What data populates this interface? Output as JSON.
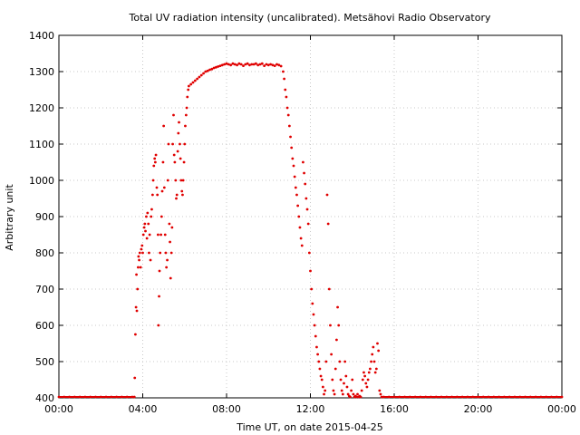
{
  "chart_data": {
    "type": "scatter",
    "title": "Total UV radiation intensity (uncalibrated). Metsähovi Radio Observatory",
    "xlabel": "Time UT, on date 2015-04-25",
    "ylabel": "Arbitrary unit",
    "xlim": [
      0,
      24
    ],
    "ylim": [
      400,
      1400
    ],
    "x_ticks": [
      {
        "value": 0,
        "label": "00:00"
      },
      {
        "value": 4,
        "label": "04:00"
      },
      {
        "value": 8,
        "label": "08:00"
      },
      {
        "value": 12,
        "label": "12:00"
      },
      {
        "value": 16,
        "label": "16:00"
      },
      {
        "value": 20,
        "label": "20:00"
      },
      {
        "value": 24,
        "label": "00:00"
      }
    ],
    "y_ticks": [
      {
        "value": 400,
        "label": "400"
      },
      {
        "value": 500,
        "label": "500"
      },
      {
        "value": 600,
        "label": "600"
      },
      {
        "value": 700,
        "label": "700"
      },
      {
        "value": 800,
        "label": "800"
      },
      {
        "value": 900,
        "label": "900"
      },
      {
        "value": 1000,
        "label": "1000"
      },
      {
        "value": 1100,
        "label": "1100"
      },
      {
        "value": 1200,
        "label": "1200"
      },
      {
        "value": 1300,
        "label": "1300"
      },
      {
        "value": 1400,
        "label": "1400"
      }
    ],
    "grid": true,
    "series": [
      {
        "color": "#e00000",
        "points": [
          [
            0.0,
            400
          ],
          [
            0.25,
            400
          ],
          [
            0.5,
            400
          ],
          [
            0.75,
            400
          ],
          [
            1.0,
            400
          ],
          [
            1.25,
            400
          ],
          [
            1.5,
            400
          ],
          [
            1.75,
            400
          ],
          [
            2.0,
            400
          ],
          [
            2.25,
            400
          ],
          [
            2.5,
            400
          ],
          [
            2.75,
            400
          ],
          [
            3.0,
            400
          ],
          [
            3.25,
            400
          ],
          [
            3.5,
            400
          ],
          [
            3.6,
            400
          ],
          [
            3.62,
            455
          ],
          [
            3.65,
            575
          ],
          [
            3.68,
            650
          ],
          [
            3.7,
            740
          ],
          [
            3.72,
            640
          ],
          [
            3.75,
            700
          ],
          [
            3.78,
            760
          ],
          [
            3.8,
            790
          ],
          [
            3.83,
            780
          ],
          [
            3.86,
            800
          ],
          [
            3.9,
            760
          ],
          [
            3.93,
            810
          ],
          [
            3.97,
            820
          ],
          [
            4.0,
            800
          ],
          [
            4.03,
            850
          ],
          [
            4.07,
            870
          ],
          [
            4.1,
            880
          ],
          [
            4.13,
            860
          ],
          [
            4.17,
            900
          ],
          [
            4.2,
            840
          ],
          [
            4.23,
            910
          ],
          [
            4.27,
            880
          ],
          [
            4.3,
            800
          ],
          [
            4.33,
            850
          ],
          [
            4.37,
            780
          ],
          [
            4.4,
            900
          ],
          [
            4.43,
            920
          ],
          [
            4.47,
            960
          ],
          [
            4.5,
            1000
          ],
          [
            4.53,
            1040
          ],
          [
            4.57,
            1060
          ],
          [
            4.6,
            1050
          ],
          [
            4.63,
            1070
          ],
          [
            4.67,
            980
          ],
          [
            4.7,
            960
          ],
          [
            4.73,
            850
          ],
          [
            4.75,
            600
          ],
          [
            4.78,
            680
          ],
          [
            4.8,
            750
          ],
          [
            4.83,
            800
          ],
          [
            4.87,
            850
          ],
          [
            4.9,
            900
          ],
          [
            4.93,
            970
          ],
          [
            4.97,
            1050
          ],
          [
            5.0,
            1150
          ],
          [
            5.03,
            980
          ],
          [
            5.07,
            850
          ],
          [
            5.1,
            800
          ],
          [
            5.13,
            760
          ],
          [
            5.17,
            780
          ],
          [
            5.2,
            1000
          ],
          [
            5.23,
            1100
          ],
          [
            5.27,
            880
          ],
          [
            5.3,
            830
          ],
          [
            5.33,
            730
          ],
          [
            5.37,
            800
          ],
          [
            5.4,
            870
          ],
          [
            5.43,
            1100
          ],
          [
            5.47,
            1180
          ],
          [
            5.5,
            1070
          ],
          [
            5.53,
            1050
          ],
          [
            5.57,
            1000
          ],
          [
            5.6,
            950
          ],
          [
            5.63,
            960
          ],
          [
            5.67,
            1080
          ],
          [
            5.7,
            1130
          ],
          [
            5.73,
            1160
          ],
          [
            5.77,
            1100
          ],
          [
            5.8,
            1060
          ],
          [
            5.83,
            1000
          ],
          [
            5.87,
            970
          ],
          [
            5.9,
            960
          ],
          [
            5.93,
            1000
          ],
          [
            5.97,
            1050
          ],
          [
            6.0,
            1100
          ],
          [
            6.03,
            1150
          ],
          [
            6.07,
            1180
          ],
          [
            6.1,
            1200
          ],
          [
            6.13,
            1230
          ],
          [
            6.17,
            1250
          ],
          [
            6.2,
            1260
          ],
          [
            6.3,
            1265
          ],
          [
            6.4,
            1270
          ],
          [
            6.5,
            1275
          ],
          [
            6.6,
            1280
          ],
          [
            6.7,
            1285
          ],
          [
            6.8,
            1290
          ],
          [
            6.9,
            1295
          ],
          [
            7.0,
            1300
          ],
          [
            7.1,
            1302
          ],
          [
            7.2,
            1305
          ],
          [
            7.3,
            1307
          ],
          [
            7.4,
            1310
          ],
          [
            7.5,
            1312
          ],
          [
            7.6,
            1314
          ],
          [
            7.7,
            1316
          ],
          [
            7.8,
            1318
          ],
          [
            7.9,
            1320
          ],
          [
            8.0,
            1322
          ],
          [
            8.1,
            1320
          ],
          [
            8.2,
            1318
          ],
          [
            8.3,
            1322
          ],
          [
            8.4,
            1320
          ],
          [
            8.5,
            1318
          ],
          [
            8.6,
            1322
          ],
          [
            8.7,
            1320
          ],
          [
            8.8,
            1316
          ],
          [
            8.9,
            1320
          ],
          [
            9.0,
            1322
          ],
          [
            9.1,
            1318
          ],
          [
            9.2,
            1320
          ],
          [
            9.3,
            1320
          ],
          [
            9.4,
            1322
          ],
          [
            9.5,
            1318
          ],
          [
            9.6,
            1320
          ],
          [
            9.7,
            1322
          ],
          [
            9.8,
            1316
          ],
          [
            9.9,
            1320
          ],
          [
            10.0,
            1318
          ],
          [
            10.1,
            1320
          ],
          [
            10.2,
            1318
          ],
          [
            10.3,
            1316
          ],
          [
            10.4,
            1320
          ],
          [
            10.5,
            1318
          ],
          [
            10.6,
            1315
          ],
          [
            10.7,
            1300
          ],
          [
            10.75,
            1280
          ],
          [
            10.8,
            1250
          ],
          [
            10.85,
            1230
          ],
          [
            10.9,
            1200
          ],
          [
            10.95,
            1180
          ],
          [
            11.0,
            1150
          ],
          [
            11.05,
            1120
          ],
          [
            11.1,
            1090
          ],
          [
            11.15,
            1060
          ],
          [
            11.2,
            1040
          ],
          [
            11.25,
            1010
          ],
          [
            11.3,
            980
          ],
          [
            11.35,
            960
          ],
          [
            11.4,
            930
          ],
          [
            11.45,
            900
          ],
          [
            11.5,
            870
          ],
          [
            11.55,
            840
          ],
          [
            11.6,
            820
          ],
          [
            11.65,
            1050
          ],
          [
            11.7,
            1020
          ],
          [
            11.75,
            990
          ],
          [
            11.8,
            950
          ],
          [
            11.85,
            920
          ],
          [
            11.9,
            880
          ],
          [
            11.95,
            800
          ],
          [
            12.0,
            750
          ],
          [
            12.05,
            700
          ],
          [
            12.1,
            660
          ],
          [
            12.15,
            630
          ],
          [
            12.2,
            600
          ],
          [
            12.25,
            570
          ],
          [
            12.3,
            540
          ],
          [
            12.35,
            520
          ],
          [
            12.4,
            500
          ],
          [
            12.45,
            480
          ],
          [
            12.5,
            460
          ],
          [
            12.55,
            450
          ],
          [
            12.6,
            430
          ],
          [
            12.65,
            410
          ],
          [
            12.7,
            420
          ],
          [
            12.75,
            500
          ],
          [
            12.8,
            960
          ],
          [
            12.85,
            880
          ],
          [
            12.9,
            700
          ],
          [
            12.95,
            600
          ],
          [
            13.0,
            520
          ],
          [
            13.05,
            450
          ],
          [
            13.1,
            420
          ],
          [
            13.15,
            410
          ],
          [
            13.2,
            480
          ],
          [
            13.25,
            560
          ],
          [
            13.3,
            650
          ],
          [
            13.35,
            600
          ],
          [
            13.4,
            500
          ],
          [
            13.45,
            450
          ],
          [
            13.5,
            420
          ],
          [
            13.55,
            410
          ],
          [
            13.6,
            440
          ],
          [
            13.65,
            500
          ],
          [
            13.7,
            460
          ],
          [
            13.75,
            430
          ],
          [
            13.8,
            410
          ],
          [
            13.85,
            405
          ],
          [
            13.9,
            400
          ],
          [
            13.95,
            420
          ],
          [
            14.0,
            450
          ],
          [
            14.05,
            410
          ],
          [
            14.1,
            400
          ],
          [
            14.15,
            405
          ],
          [
            14.2,
            400
          ],
          [
            14.25,
            410
          ],
          [
            14.3,
            400
          ],
          [
            14.35,
            405
          ],
          [
            14.4,
            400
          ],
          [
            14.45,
            420
          ],
          [
            14.5,
            450
          ],
          [
            14.55,
            470
          ],
          [
            14.6,
            460
          ],
          [
            14.65,
            440
          ],
          [
            14.7,
            430
          ],
          [
            14.75,
            450
          ],
          [
            14.8,
            470
          ],
          [
            14.85,
            480
          ],
          [
            14.9,
            500
          ],
          [
            14.95,
            520
          ],
          [
            15.0,
            540
          ],
          [
            15.05,
            500
          ],
          [
            15.1,
            470
          ],
          [
            15.15,
            480
          ],
          [
            15.2,
            550
          ],
          [
            15.25,
            530
          ],
          [
            15.3,
            420
          ],
          [
            15.35,
            410
          ],
          [
            15.4,
            400
          ],
          [
            15.5,
            400
          ],
          [
            15.75,
            400
          ],
          [
            16.0,
            400
          ],
          [
            16.25,
            400
          ],
          [
            16.5,
            400
          ],
          [
            16.75,
            400
          ],
          [
            17.0,
            400
          ],
          [
            17.25,
            400
          ],
          [
            17.5,
            400
          ],
          [
            17.75,
            400
          ],
          [
            18.0,
            400
          ],
          [
            18.25,
            400
          ],
          [
            18.5,
            400
          ],
          [
            18.75,
            400
          ],
          [
            19.0,
            400
          ],
          [
            19.25,
            400
          ],
          [
            19.5,
            400
          ],
          [
            19.75,
            400
          ],
          [
            20.0,
            400
          ],
          [
            20.25,
            400
          ],
          [
            20.5,
            400
          ],
          [
            20.75,
            400
          ],
          [
            21.0,
            400
          ],
          [
            21.25,
            400
          ],
          [
            21.5,
            400
          ],
          [
            21.75,
            400
          ],
          [
            22.0,
            400
          ],
          [
            22.25,
            400
          ],
          [
            22.5,
            400
          ],
          [
            22.75,
            400
          ],
          [
            23.0,
            400
          ],
          [
            23.25,
            400
          ],
          [
            23.5,
            400
          ],
          [
            23.75,
            400
          ],
          [
            24.0,
            400
          ]
        ]
      }
    ]
  }
}
